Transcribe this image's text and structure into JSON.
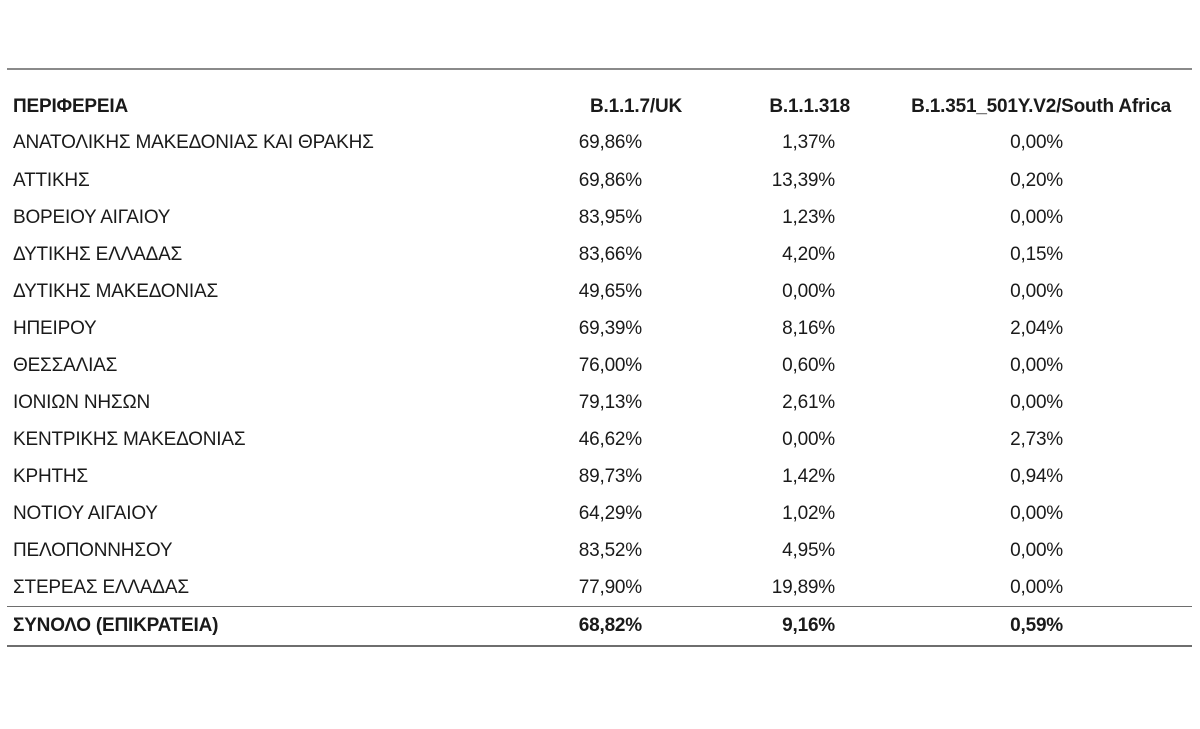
{
  "table": {
    "headers": {
      "region": "ΠΕΡΙΦΕΡΕΙΑ",
      "uk": "B.1.1.7/UK",
      "b318": "B.1.1.318",
      "sa": "B.1.351_501Y.V2/South Africa"
    },
    "rows": [
      {
        "region": "ΑΝΑΤΟΛΙΚΗΣ ΜΑΚΕΔΟΝΙΑΣ ΚΑΙ ΘΡΑΚΗΣ",
        "uk": "69,86%",
        "b318": "1,37%",
        "sa": "0,00%"
      },
      {
        "region": "ΑΤΤΙΚΗΣ",
        "uk": "69,86%",
        "b318": "13,39%",
        "sa": "0,20%"
      },
      {
        "region": "ΒΟΡΕΙΟΥ ΑΙΓΑΙΟΥ",
        "uk": "83,95%",
        "b318": "1,23%",
        "sa": "0,00%"
      },
      {
        "region": "ΔΥΤΙΚΗΣ ΕΛΛΑΔΑΣ",
        "uk": "83,66%",
        "b318": "4,20%",
        "sa": "0,15%"
      },
      {
        "region": "ΔΥΤΙΚΗΣ ΜΑΚΕΔΟΝΙΑΣ",
        "uk": "49,65%",
        "b318": "0,00%",
        "sa": "0,00%"
      },
      {
        "region": "ΗΠΕΙΡΟΥ",
        "uk": "69,39%",
        "b318": "8,16%",
        "sa": "2,04%"
      },
      {
        "region": "ΘΕΣΣΑΛΙΑΣ",
        "uk": "76,00%",
        "b318": "0,60%",
        "sa": "0,00%"
      },
      {
        "region": "ΙΟΝΙΩΝ ΝΗΣΩΝ",
        "uk": "79,13%",
        "b318": "2,61%",
        "sa": "0,00%"
      },
      {
        "region": "ΚΕΝΤΡΙΚΗΣ ΜΑΚΕΔΟΝΙΑΣ",
        "uk": "46,62%",
        "b318": "0,00%",
        "sa": "2,73%"
      },
      {
        "region": "ΚΡΗΤΗΣ",
        "uk": "89,73%",
        "b318": "1,42%",
        "sa": "0,94%"
      },
      {
        "region": "ΝΟΤΙΟΥ ΑΙΓΑΙΟΥ",
        "uk": "64,29%",
        "b318": "1,02%",
        "sa": "0,00%"
      },
      {
        "region": "ΠΕΛΟΠΟΝΝΗΣΟΥ",
        "uk": "83,52%",
        "b318": "4,95%",
        "sa": "0,00%"
      },
      {
        "region": "ΣΤΕΡΕΑΣ ΕΛΛΑΔΑΣ",
        "uk": "77,90%",
        "b318": "19,89%",
        "sa": "0,00%"
      }
    ],
    "total": {
      "region": "ΣΥΝΟΛΟ (ΕΠΙΚΡΑΤΕΙΑ)",
      "uk": "68,82%",
      "b318": "9,16%",
      "sa": "0,59%"
    }
  }
}
